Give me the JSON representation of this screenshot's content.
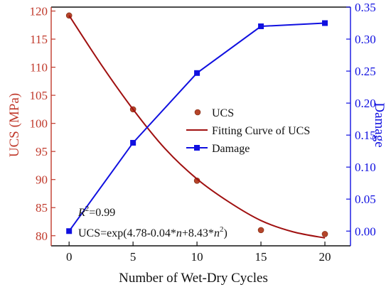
{
  "chart_data": {
    "type": "line",
    "xlabel": "Number of Wet-Dry Cycles",
    "x_ticks": [
      0,
      5,
      10,
      15,
      20
    ],
    "xlim": [
      -1.4,
      22
    ],
    "y_left": {
      "label": "UCS (MPa)",
      "color": "#c0392b",
      "lim": [
        78.2,
        120.7
      ],
      "ticks": [
        80,
        85,
        90,
        95,
        100,
        105,
        110,
        115,
        120
      ]
    },
    "y_right": {
      "label": "Damage",
      "color": "#1010e0",
      "lim": [
        -0.023,
        0.35
      ],
      "ticks": [
        "0.00",
        "0.05",
        "0.10",
        "0.15",
        "0.20",
        "0.25",
        "0.30",
        "0.35"
      ]
    },
    "series": [
      {
        "name": "UCS",
        "kind": "scatter",
        "axis": "left",
        "color": "#b5452a",
        "x": [
          0,
          5,
          10,
          15,
          20
        ],
        "y": [
          119.2,
          102.5,
          89.8,
          81.0,
          80.3
        ]
      },
      {
        "name": "Fitting Curve of UCS",
        "kind": "curve",
        "axis": "left",
        "color": "#a01010",
        "x": [
          0,
          2.5,
          5,
          7.5,
          10,
          12.5,
          15,
          17.5,
          20
        ],
        "y": [
          119.2,
          110.5,
          102.5,
          95.5,
          90.1,
          86.0,
          82.7,
          80.7,
          79.6
        ]
      },
      {
        "name": "Damage",
        "kind": "line-marker",
        "axis": "right",
        "color": "#1010e0",
        "x": [
          0,
          5,
          10,
          15,
          20
        ],
        "y": [
          0.0,
          0.138,
          0.247,
          0.32,
          0.325
        ]
      }
    ],
    "legend": {
      "placement": "center-right"
    },
    "annotations": {
      "r2_symbol": "R",
      "r2_sup": "2",
      "r2_value": "=0.99",
      "eq_prefix": "UCS=exp(4.78-0.04*",
      "eq_n1": "n",
      "eq_mid": "+8.43*",
      "eq_n2": "n",
      "eq_sup": "2",
      "eq_suffix": ")"
    },
    "grid": false
  }
}
